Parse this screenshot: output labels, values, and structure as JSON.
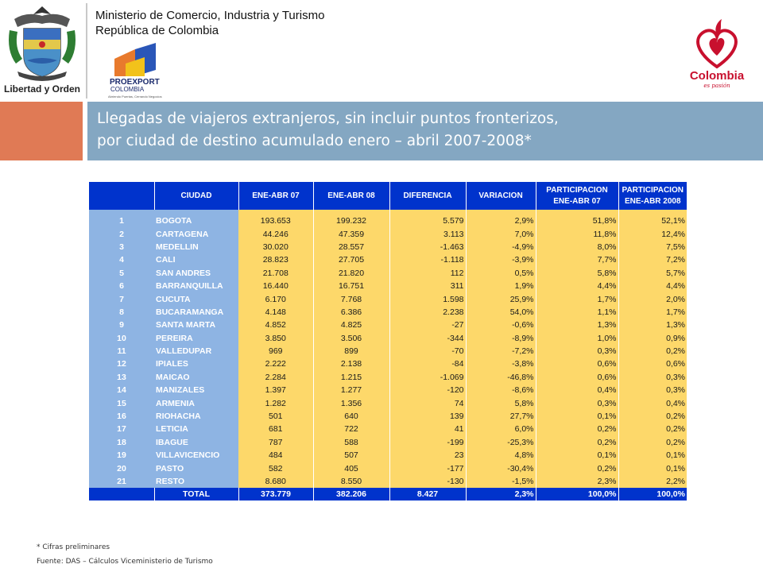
{
  "header": {
    "ministry_line1": "Ministerio de Comercio, Industria y Turismo",
    "ministry_line2": "República de Colombia",
    "seal_caption": "Libertad y Orden",
    "proexport_name": "PROEXPORT",
    "proexport_country": "COLOMBIA",
    "proexport_tagline": "Abriendo Puertas, Cerrando Negocios",
    "brand_name": "Colombia",
    "brand_tagline": "es pasión"
  },
  "title": {
    "line1": "Llegadas de viajeros extranjeros, sin incluir puntos fronterizos,",
    "line2": "por ciudad de destino acumulado enero – abril 2007-2008*"
  },
  "table": {
    "headers": [
      "",
      "CIUDAD",
      "ENE-ABR 07",
      "ENE-ABR 08",
      "DIFERENCIA",
      "VARIACION",
      "PARTICIPACION ENE-ABR 07",
      "PARTICIPACION ENE-ABR 2008"
    ],
    "rows": [
      [
        "1",
        "BOGOTA",
        "193.653",
        "199.232",
        "5.579",
        "2,9%",
        "51,8%",
        "52,1%"
      ],
      [
        "2",
        "CARTAGENA",
        "44.246",
        "47.359",
        "3.113",
        "7,0%",
        "11,8%",
        "12,4%"
      ],
      [
        "3",
        "MEDELLIN",
        "30.020",
        "28.557",
        "-1.463",
        "-4,9%",
        "8,0%",
        "7,5%"
      ],
      [
        "4",
        "CALI",
        "28.823",
        "27.705",
        "-1.118",
        "-3,9%",
        "7,7%",
        "7,2%"
      ],
      [
        "5",
        "SAN ANDRES",
        "21.708",
        "21.820",
        "112",
        "0,5%",
        "5,8%",
        "5,7%"
      ],
      [
        "6",
        "BARRANQUILLA",
        "16.440",
        "16.751",
        "311",
        "1,9%",
        "4,4%",
        "4,4%"
      ],
      [
        "7",
        "CUCUTA",
        "6.170",
        "7.768",
        "1.598",
        "25,9%",
        "1,7%",
        "2,0%"
      ],
      [
        "8",
        "BUCARAMANGA",
        "4.148",
        "6.386",
        "2.238",
        "54,0%",
        "1,1%",
        "1,7%"
      ],
      [
        "9",
        "SANTA MARTA",
        "4.852",
        "4.825",
        "-27",
        "-0,6%",
        "1,3%",
        "1,3%"
      ],
      [
        "10",
        "PEREIRA",
        "3.850",
        "3.506",
        "-344",
        "-8,9%",
        "1,0%",
        "0,9%"
      ],
      [
        "11",
        "VALLEDUPAR",
        "969",
        "899",
        "-70",
        "-7,2%",
        "0,3%",
        "0,2%"
      ],
      [
        "12",
        "IPIALES",
        "2.222",
        "2.138",
        "-84",
        "-3,8%",
        "0,6%",
        "0,6%"
      ],
      [
        "13",
        "MAICAO",
        "2.284",
        "1.215",
        "-1.069",
        "-46,8%",
        "0,6%",
        "0,3%"
      ],
      [
        "14",
        "MANIZALES",
        "1.397",
        "1.277",
        "-120",
        "-8,6%",
        "0,4%",
        "0,3%"
      ],
      [
        "15",
        "ARMENIA",
        "1.282",
        "1.356",
        "74",
        "5,8%",
        "0,3%",
        "0,4%"
      ],
      [
        "16",
        "RIOHACHA",
        "501",
        "640",
        "139",
        "27,7%",
        "0,1%",
        "0,2%"
      ],
      [
        "17",
        "LETICIA",
        "681",
        "722",
        "41",
        "6,0%",
        "0,2%",
        "0,2%"
      ],
      [
        "18",
        "IBAGUE",
        "787",
        "588",
        "-199",
        "-25,3%",
        "0,2%",
        "0,2%"
      ],
      [
        "19",
        "VILLAVICENCIO",
        "484",
        "507",
        "23",
        "4,8%",
        "0,1%",
        "0,1%"
      ],
      [
        "20",
        "PASTO",
        "582",
        "405",
        "-177",
        "-30,4%",
        "0,2%",
        "0,1%"
      ],
      [
        "21",
        "RESTO",
        "8.680",
        "8.550",
        "-130",
        "-1,5%",
        "2,3%",
        "2,2%"
      ]
    ],
    "total": [
      "TOTAL",
      "373.779",
      "382.206",
      "8.427",
      "2,3%",
      "100,0%",
      "100,0%"
    ]
  },
  "footnotes": {
    "note": "* Cifras preliminares",
    "source": "Fuente: DAS – Cálculos Viceministerio de Turismo"
  },
  "colors": {
    "header_blue": "#0033cc",
    "city_blue": "#8eb4e3",
    "value_yellow": "#fdd86a",
    "title_bar": "#84a7c2",
    "accent_orange": "#e07a55",
    "brand_red": "#c8102e"
  }
}
